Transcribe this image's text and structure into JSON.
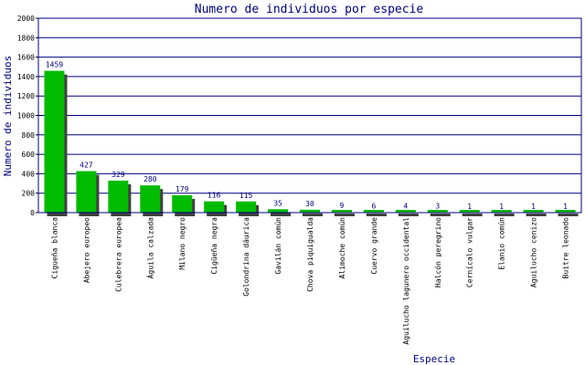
{
  "chart_data": {
    "type": "bar",
    "title": "Numero de individuos por especie",
    "xlabel": "Especie",
    "ylabel": "Numero de individuos",
    "ylim": [
      0,
      2000
    ],
    "yticks": [
      0,
      200,
      400,
      600,
      800,
      1000,
      1200,
      1400,
      1600,
      1800,
      2000
    ],
    "grid": true,
    "categories": [
      "Cigueña blanca",
      "Abejero europeo",
      "Culebrera europea",
      "Águila calzada",
      "Milano negro",
      "Cigüeña negra",
      "Golondrina dáurica",
      "Gavilán común",
      "Chova piquigualda",
      "Alimoche común",
      "Cuervo grande",
      "Aguilucho lagunero occidental",
      "Halcón peregrino",
      "Cernícalo vulgar",
      "Elanio común",
      "Aguilucho cenizo",
      "Buitre leonado"
    ],
    "values": [
      1459,
      427,
      329,
      280,
      179,
      116,
      115,
      35,
      30,
      9,
      6,
      4,
      3,
      1,
      1,
      1,
      1
    ],
    "colors": {
      "bar": "#00bb00",
      "shadow": "#404040",
      "grid": "#000080",
      "frame": "#000080",
      "title": "#000080",
      "data_label": "#000080"
    }
  }
}
